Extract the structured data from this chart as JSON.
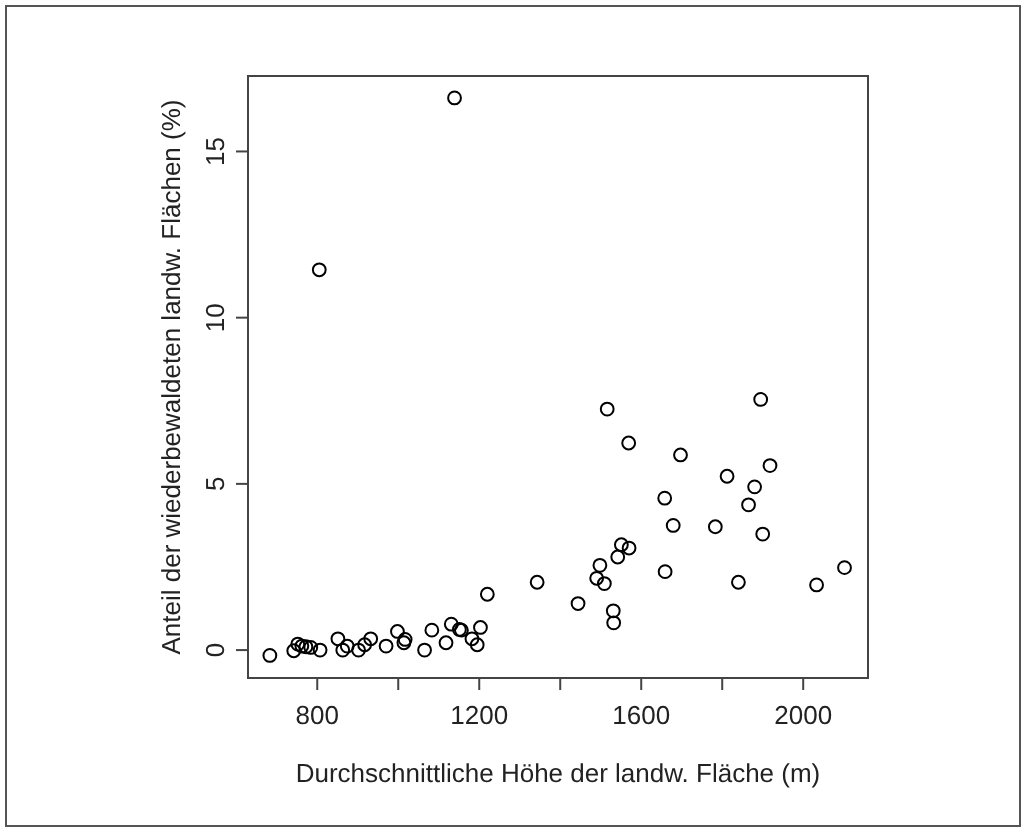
{
  "chart_data": {
    "type": "scatter",
    "xlabel": "Durchschnittliche Höhe der landw. Fläche (m)",
    "ylabel": "Anteil der wiederbewaldeten landw. Flächen (%)",
    "marker": "circle",
    "grid": false,
    "xlim": [
      629,
      2160
    ],
    "ylim": [
      -0.84,
      17.27
    ],
    "xticks": [
      800,
      {
        "value": 1000,
        "label": null
      },
      1200,
      {
        "value": 1400,
        "label": null
      },
      1600,
      {
        "value": 1800,
        "label": null
      },
      2000
    ],
    "yticks": [
      0,
      5,
      10,
      15
    ],
    "series": [
      {
        "color": "#000000",
        "x": [
          683,
          742,
          752,
          762,
          772,
          784,
          805,
          807,
          851,
          863,
          874,
          902,
          917,
          932,
          970,
          998,
          1014,
          1017,
          1065,
          1083,
          1118,
          1131,
          1139,
          1151,
          1156,
          1182,
          1195,
          1203,
          1220,
          1343,
          1444,
          1490,
          1498,
          1509,
          1516,
          1531,
          1532,
          1542,
          1551,
          1569,
          1570,
          1658,
          1659,
          1679,
          1697,
          1783,
          1812,
          1840,
          1865,
          1880,
          1895,
          1900,
          1918,
          2033,
          2102
        ],
        "values": [
          -0.16,
          -0.02,
          0.18,
          0.12,
          0.1,
          0.08,
          11.44,
          0,
          0.34,
          0,
          0.12,
          0,
          0.16,
          0.34,
          0.12,
          0.56,
          0.22,
          0.32,
          0,
          0.6,
          0.22,
          0.78,
          16.61,
          0.62,
          0.6,
          0.34,
          0.16,
          0.68,
          1.68,
          2.04,
          1.4,
          2.16,
          2.55,
          2.0,
          7.25,
          1.18,
          0.82,
          2.8,
          3.17,
          6.23,
          3.07,
          4.57,
          2.36,
          3.75,
          5.87,
          3.71,
          5.23,
          2.04,
          4.37,
          4.91,
          7.54,
          3.49,
          5.55,
          1.96,
          2.48
        ]
      }
    ]
  }
}
